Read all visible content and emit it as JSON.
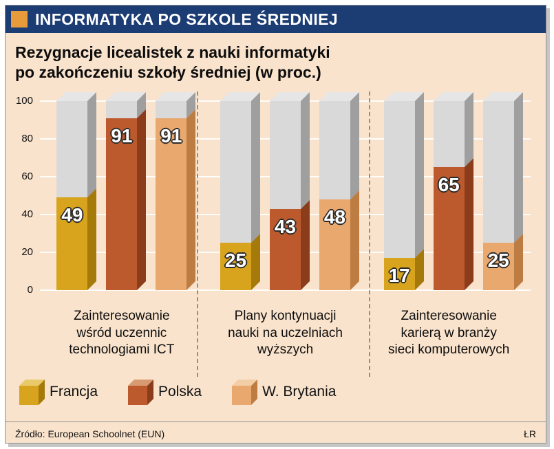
{
  "header": {
    "title": "INFORMATYKA PO SZKOLE ŚREDNIEJ"
  },
  "chart": {
    "title_line1": "Rezygnacje licealistek z nauki informatyki",
    "title_line2": "po zakończeniu szkoły średniej (w proc.)",
    "y_ticks": [
      100,
      80,
      60,
      40,
      20,
      0
    ]
  },
  "chart_data": {
    "type": "bar",
    "title": "Rezygnacje licealistek z nauki informatyki po zakończeniu szkoły średniej (w proc.)",
    "unit": "percent",
    "ylim": [
      0,
      100
    ],
    "grid": true,
    "legend_position": "bottom",
    "categories": [
      "Zainteresowanie wśród uczennic technologiami ICT",
      "Plany kontynuacji nauki na uczelniach wyższych",
      "Zainteresowanie karierą w branży sieci komputerowych"
    ],
    "categories_display": [
      "Zainteresowanie\nwśród uczennic\ntechnologiami ICT",
      "Plany kontynuacji\nnauki na uczelniach\nwyższych",
      "Zainteresowanie\nkarierą w branży\nsieci komputerowych"
    ],
    "series": [
      {
        "name": "Francja",
        "slug": "francja",
        "values": [
          49,
          25,
          17
        ],
        "color": "#d8a31d",
        "side_color": "#a5790a",
        "top_color": "#e9c968"
      },
      {
        "name": "Polska",
        "slug": "polska",
        "values": [
          91,
          43,
          65
        ],
        "color": "#bc5a2e",
        "side_color": "#8a3c1b",
        "top_color": "#d79a71"
      },
      {
        "name": "W. Brytania",
        "slug": "w-brytania",
        "values": [
          91,
          48,
          25
        ],
        "color": "#e9a86d",
        "side_color": "#bd7d42",
        "top_color": "#f3cda6"
      }
    ],
    "remainder": {
      "front": "#d9d9d9",
      "side": "#9f9f9f",
      "top": "#e6e6e6"
    }
  },
  "footer": {
    "source": "Źródło: European Schoolnet (EUN)",
    "credit": "ŁR"
  },
  "colors": {
    "header_bg": "#1c3c74",
    "accent_square": "#e79b3a",
    "background": "#f9e3cc",
    "gridline": "#ffffff"
  }
}
